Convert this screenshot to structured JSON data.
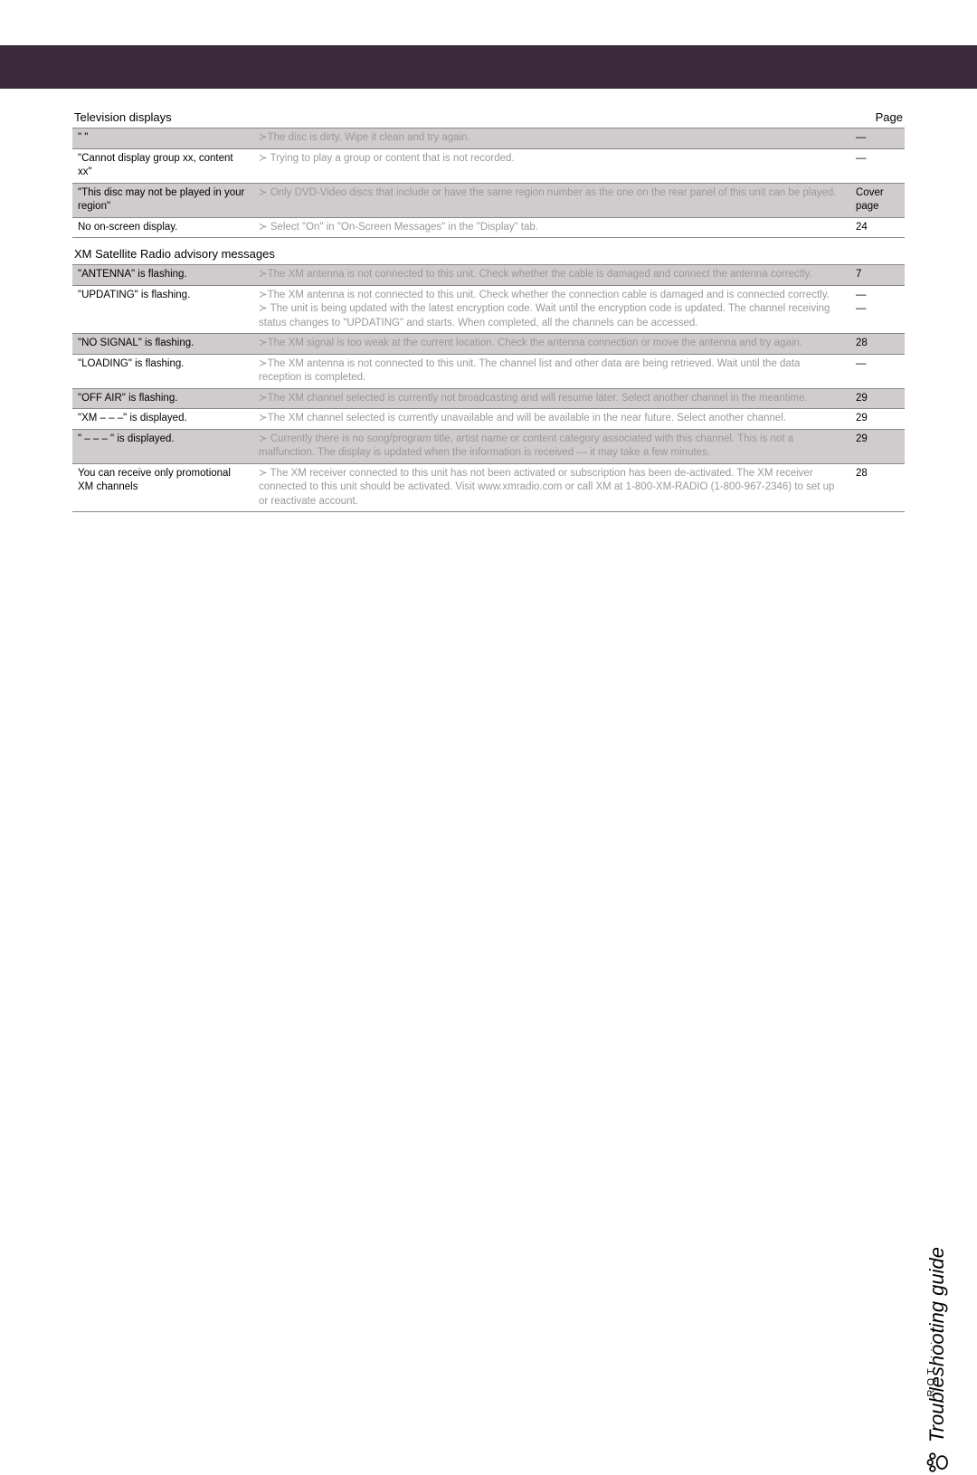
{
  "header_band_color": "#3a2a3a",
  "section1": {
    "title": "Television displays",
    "page_label": "Page"
  },
  "tv_rows": [
    {
      "symptom": "\"   \"",
      "remedy": "≻The disc is dirty. Wipe it clean and try again.",
      "page": "—",
      "shade": true
    },
    {
      "symptom": "\"Cannot display group xx, content xx\"",
      "remedy": "≻ Trying to play a group or content that is not recorded.",
      "page": "—",
      "shade": false
    },
    {
      "symptom": "\"This disc may not be played in your region\"",
      "remedy": "≻ Only DVD-Video discs that include or have the same region number as the one on the rear panel of this unit can be played.",
      "page": "Cover page",
      "shade": true
    },
    {
      "symptom": "No on-screen display.",
      "remedy": "≻ Select \"On\" in \"On-Screen Messages\" in the \"Display\" tab.",
      "page": "24",
      "shade": false
    }
  ],
  "section2": {
    "title": "XM Satellite Radio advisory messages"
  },
  "xm_rows": [
    {
      "symptom": "\"ANTENNA\" is flashing.",
      "remedy": "≻The XM antenna is not connected to this unit. Check whether the cable is damaged and connect the antenna correctly.",
      "page": "7",
      "shade": true
    },
    {
      "symptom": "\"UPDATING\" is flashing.",
      "remedy": "≻The XM antenna is not connected to this unit. Check whether the connection cable is damaged and is connected correctly.\n≻ The unit is being updated with the latest encryption code. Wait until the encryption code is updated. The channel receiving status changes to \"UPDATING\" and starts. When completed, all the channels can be accessed.",
      "page": "—\n—",
      "shade": false
    },
    {
      "symptom": "\"NO SIGNAL\" is flashing.",
      "remedy": "≻The XM signal is too weak at the current location. Check the antenna connection or move the antenna and try again.",
      "page": "28",
      "shade": true
    },
    {
      "symptom": "\"LOADING\" is flashing.",
      "remedy": "≻The XM antenna is not connected to this unit. The channel list and other data are being retrieved. Wait until the data reception is completed.",
      "page": "—",
      "shade": false
    },
    {
      "symptom": "\"OFF AIR\" is flashing.",
      "remedy": "≻The XM channel selected is currently not broadcasting and will resume later. Select another channel in the meantime.",
      "page": "29",
      "shade": true
    },
    {
      "symptom": "\"XM   – – –\" is displayed.",
      "remedy": "≻The XM channel selected is currently unavailable and will be available in the near future. Select another channel.",
      "page": "29",
      "shade": false
    },
    {
      "symptom": "\"  – – – \" is displayed.",
      "remedy": "≻ Currently there is no song/program title, artist name or content category associated with this channel. This is not a malfunction. The display is updated when the information is received — it may take a few minutes.",
      "page": "29",
      "shade": true
    },
    {
      "symptom": "You can receive only promotional XM channels",
      "remedy": "≻ The XM receiver connected to this unit has not been activated or subscription has been de-activated. The XM receiver connected to this unit should be activated. Visit www.xmradio.com or call XM at 1-800-XM-RADIO (1-800-967-2346) to set up or reactivate account.",
      "page": "28",
      "shade": false
    }
  ],
  "side": {
    "text": "Troubleshooting guide"
  },
  "footer": {
    "text": "RQT ···"
  }
}
